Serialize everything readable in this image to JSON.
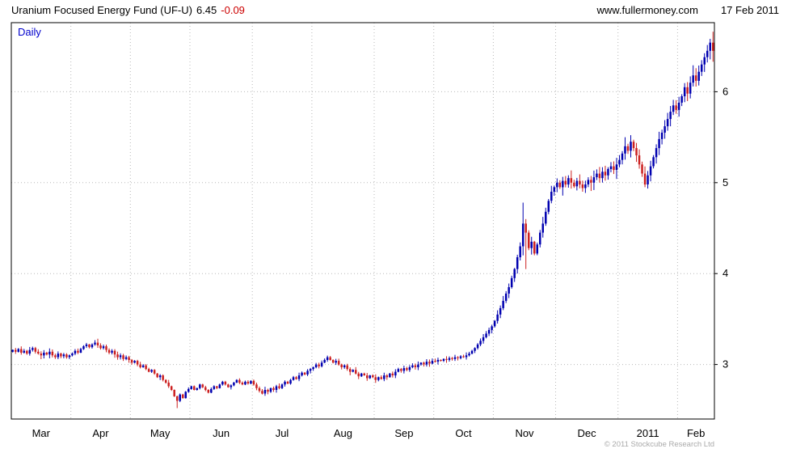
{
  "header": {
    "title": "Uranium Focused Energy Fund (UF-U)",
    "last_price": "6.45",
    "change": "-0.09",
    "website": "www.fullermoney.com",
    "date": "17 Feb 2011"
  },
  "chart": {
    "timeframe_label": "Daily",
    "copyright": "© 2011 Stockcube Research Ltd",
    "colors": {
      "up": "#0000b0",
      "down": "#cc2020",
      "grid": "#b8b8b8",
      "border": "#000000",
      "daily_label": "#0000cc",
      "axis_text": "#000000",
      "copyright_text": "#aaaaaa"
    }
  },
  "chart_data": {
    "type": "candlestick",
    "title": "Uranium Focused Energy Fund (UF-U) Daily",
    "ylim": [
      2.4,
      6.76
    ],
    "yticks": [
      3,
      4,
      5,
      6
    ],
    "x_axis_labels": [
      "Mar",
      "Apr",
      "May",
      "Jun",
      "Jul",
      "Aug",
      "Sep",
      "Oct",
      "Nov",
      "Dec",
      "2011",
      "Feb"
    ],
    "month_start_indices": [
      0,
      21,
      42,
      63,
      85,
      106,
      128,
      149,
      170,
      192,
      214,
      235
    ],
    "closes": [
      3.16,
      3.14,
      3.17,
      3.13,
      3.15,
      3.12,
      3.16,
      3.18,
      3.14,
      3.12,
      3.1,
      3.13,
      3.11,
      3.14,
      3.1,
      3.08,
      3.12,
      3.09,
      3.11,
      3.08,
      3.1,
      3.12,
      3.15,
      3.13,
      3.17,
      3.2,
      3.22,
      3.19,
      3.22,
      3.24,
      3.21,
      3.18,
      3.2,
      3.16,
      3.13,
      3.15,
      3.11,
      3.08,
      3.1,
      3.06,
      3.08,
      3.05,
      3.02,
      3.04,
      3.0,
      2.97,
      2.99,
      2.95,
      2.92,
      2.94,
      2.9,
      2.86,
      2.88,
      2.83,
      2.8,
      2.76,
      2.72,
      2.65,
      2.6,
      2.67,
      2.63,
      2.7,
      2.73,
      2.76,
      2.72,
      2.74,
      2.78,
      2.75,
      2.72,
      2.69,
      2.73,
      2.76,
      2.74,
      2.78,
      2.81,
      2.78,
      2.75,
      2.77,
      2.8,
      2.83,
      2.8,
      2.78,
      2.81,
      2.79,
      2.82,
      2.78,
      2.74,
      2.71,
      2.68,
      2.72,
      2.7,
      2.74,
      2.72,
      2.76,
      2.74,
      2.78,
      2.81,
      2.79,
      2.83,
      2.86,
      2.84,
      2.88,
      2.91,
      2.89,
      2.93,
      2.95,
      2.97,
      3.0,
      2.98,
      3.02,
      3.05,
      3.08,
      3.05,
      3.02,
      3.04,
      3.0,
      2.97,
      2.99,
      2.95,
      2.92,
      2.94,
      2.9,
      2.87,
      2.9,
      2.88,
      2.85,
      2.88,
      2.86,
      2.83,
      2.86,
      2.84,
      2.88,
      2.86,
      2.9,
      2.88,
      2.92,
      2.95,
      2.93,
      2.96,
      2.94,
      2.97,
      2.99,
      2.97,
      3.0,
      3.02,
      3.0,
      3.03,
      3.01,
      3.04,
      3.03,
      3.05,
      3.04,
      3.06,
      3.05,
      3.07,
      3.06,
      3.08,
      3.07,
      3.09,
      3.08,
      3.1,
      3.12,
      3.15,
      3.18,
      3.22,
      3.26,
      3.3,
      3.34,
      3.38,
      3.42,
      3.48,
      3.55,
      3.62,
      3.7,
      3.78,
      3.85,
      3.95,
      4.05,
      4.18,
      4.3,
      4.55,
      4.45,
      4.28,
      4.35,
      4.22,
      4.32,
      4.45,
      4.55,
      4.68,
      4.8,
      4.9,
      4.95,
      5.0,
      4.95,
      5.02,
      4.98,
      5.05,
      5.0,
      4.96,
      5.02,
      4.98,
      4.94,
      4.98,
      5.03,
      5.0,
      5.06,
      5.1,
      5.05,
      5.12,
      5.08,
      5.15,
      5.18,
      5.14,
      5.2,
      5.25,
      5.32,
      5.4,
      5.35,
      5.45,
      5.38,
      5.3,
      5.2,
      5.1,
      4.98,
      5.08,
      5.18,
      5.28,
      5.38,
      5.48,
      5.55,
      5.62,
      5.7,
      5.78,
      5.85,
      5.8,
      5.88,
      5.95,
      6.05,
      5.98,
      6.1,
      6.18,
      6.12,
      6.22,
      6.3,
      6.38,
      6.45,
      6.54,
      6.45
    ],
    "wick_overrides": {
      "58": {
        "l": 2.52
      },
      "180": {
        "h": 4.78,
        "l": 4.2
      },
      "181": {
        "h": 4.6,
        "l": 4.05
      }
    }
  }
}
